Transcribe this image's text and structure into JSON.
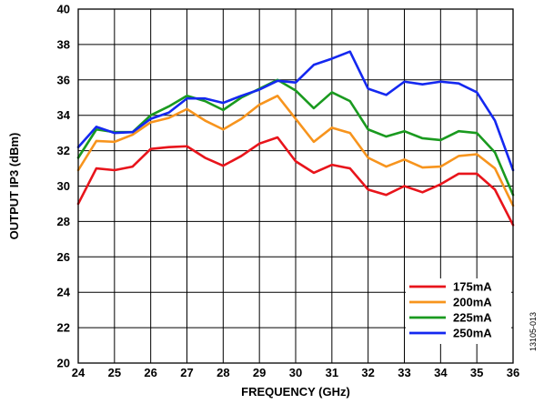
{
  "chart_data": {
    "type": "line",
    "xlabel": "FREQUENCY (GHz)",
    "ylabel": "OUTPUT IP3 (dBm)",
    "xlim": [
      24,
      36
    ],
    "ylim": [
      20,
      40
    ],
    "x_ticks": [
      24,
      25,
      26,
      27,
      28,
      29,
      30,
      31,
      32,
      33,
      34,
      35,
      36
    ],
    "y_ticks": [
      20,
      22,
      24,
      26,
      28,
      30,
      32,
      34,
      36,
      38,
      40
    ],
    "grid": true,
    "legend_position": "bottom-right",
    "x": [
      24,
      24.5,
      25,
      25.5,
      26,
      26.5,
      27,
      27.5,
      28,
      28.5,
      29,
      29.5,
      30,
      30.5,
      31,
      31.5,
      32,
      32.5,
      33,
      33.5,
      34,
      34.5,
      35,
      35.5,
      36
    ],
    "series": [
      {
        "name": "175mA",
        "color": "#e8141b",
        "values": [
          29.0,
          31.0,
          30.9,
          31.1,
          32.1,
          32.2,
          32.25,
          31.6,
          31.15,
          31.7,
          32.4,
          32.75,
          31.4,
          30.75,
          31.2,
          31.0,
          29.8,
          29.5,
          30.0,
          29.65,
          30.1,
          30.7,
          30.7,
          29.8,
          27.8
        ]
      },
      {
        "name": "200mA",
        "color": "#f7941d",
        "values": [
          30.9,
          32.55,
          32.5,
          32.9,
          33.6,
          33.85,
          34.35,
          33.7,
          33.2,
          33.8,
          34.6,
          35.1,
          33.8,
          32.5,
          33.3,
          33.0,
          31.6,
          31.1,
          31.5,
          31.05,
          31.1,
          31.7,
          31.8,
          31.0,
          28.9
        ]
      },
      {
        "name": "225mA",
        "color": "#1a9a1f",
        "values": [
          31.6,
          33.2,
          33.05,
          33.05,
          34.0,
          34.5,
          35.1,
          34.8,
          34.3,
          35.0,
          35.5,
          36.0,
          35.4,
          34.4,
          35.3,
          34.8,
          33.2,
          32.8,
          33.1,
          32.7,
          32.6,
          33.1,
          33.0,
          31.9,
          29.5
        ]
      },
      {
        "name": "250mA",
        "color": "#1428f0",
        "values": [
          32.2,
          33.35,
          33.0,
          33.05,
          33.8,
          34.15,
          34.95,
          34.95,
          34.7,
          35.1,
          35.45,
          35.95,
          35.85,
          36.85,
          37.2,
          37.6,
          35.5,
          35.15,
          35.9,
          35.75,
          35.9,
          35.8,
          35.3,
          33.7,
          30.9
        ]
      }
    ],
    "figure_id": "13105-013"
  }
}
